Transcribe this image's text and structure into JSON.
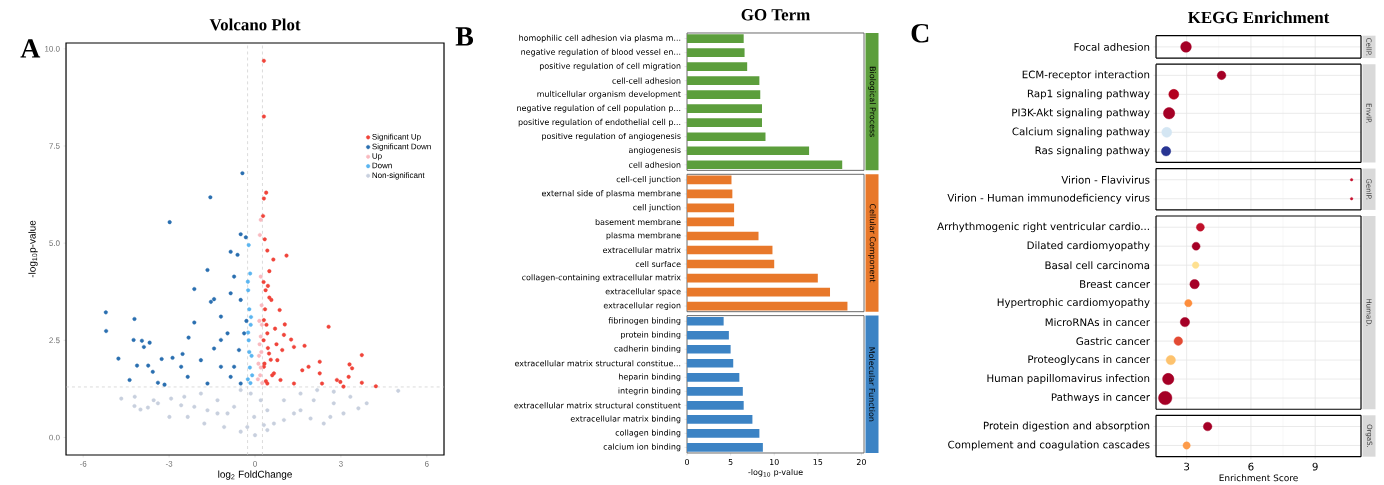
{
  "chart_data": [
    {
      "type": "scatter",
      "title": "Volcano Plot",
      "xlabel": "log$_{2}$ FoldChange",
      "ylabel": "-log$_{10}$p-value",
      "annotations": [
        "A"
      ],
      "legend": "top right",
      "xlim": [
        -6.6,
        6.6
      ],
      "ylim": [
        -0.45,
        10.15
      ],
      "xticks": [
        -6,
        -3,
        0,
        3,
        6
      ],
      "yticks": [
        {
          "value": 0,
          "label": "0.0"
        },
        {
          "value": 2.5,
          "label": "2.5"
        },
        {
          "value": 5,
          "label": "5.0"
        },
        {
          "value": 7.5,
          "label": "7.5"
        },
        {
          "value": 10,
          "label": "10.0"
        }
      ],
      "ref_lines": [
        {
          "axis": "x",
          "value": -0.26,
          "color": "#c4c4c4",
          "line_style": "dashed"
        },
        {
          "axis": "x",
          "value": 0.26,
          "color": "#c4c4c4",
          "line_style": "dashed"
        },
        {
          "axis": "y",
          "value": 1.3,
          "color": "#c4c4c4",
          "line_style": "dashed"
        }
      ],
      "series": [
        {
          "name": "Significant Up",
          "color": "#f0443a",
          "x": [
            0.31,
            0.31,
            0.39,
            0.31,
            0.28,
            0.34,
            0.43,
            0.64,
            1.1,
            0.5,
            0.37,
            0.57,
            0.86,
            1.04,
            2.57,
            1.01,
            1.26,
            1.73,
            1.36,
            0.95,
            3.73,
            2.26,
            3.3,
            1.87,
            3.39,
            1.65,
            2.26,
            3.27,
            2.86,
            2.98,
            3.73,
            2.34,
            4.22,
            3.09,
            1.36,
            0.43,
            0.31,
            0.66,
            0.89,
            0.43,
            0.31,
            0.49,
            0.78,
            0.35,
            0.4,
            0.3,
            0.45,
            0.55,
            0.33,
            0.6,
            0.38,
            0.5,
            0.3,
            0.45,
            0.7,
            0.75
          ],
          "values": [
            9.69,
            8.26,
            6.3,
            6.15,
            5.7,
            5.1,
            4.81,
            4.58,
            4.68,
            4.28,
            3.79,
            3.54,
            3.28,
            2.91,
            2.85,
            2.64,
            2.52,
            2.36,
            2.33,
            2.25,
            2.12,
            1.95,
            1.88,
            1.82,
            1.78,
            1.73,
            1.65,
            1.56,
            1.48,
            1.43,
            1.41,
            1.39,
            1.32,
            1.31,
            1.39,
            2.68,
            1.82,
            1.65,
            1.48,
            1.39,
            3.02,
            2.16,
            1.99,
            3.3,
            2.9,
            2.5,
            2.3,
            2.0,
            1.9,
            1.6,
            1.45,
            3.6,
            4.0,
            3.9,
            2.8,
            2.4
          ]
        },
        {
          "name": "Significant Down",
          "color": "#2a6fb0",
          "x": [
            -0.44,
            -1.56,
            -2.98,
            -5.21,
            -4.21,
            -5.2,
            -2.12,
            -1.66,
            -0.5,
            -0.32,
            -0.85,
            -0.61,
            -2.12,
            -2.32,
            -4.24,
            -3.95,
            -3.68,
            -3.88,
            -2.53,
            -4.77,
            -2.88,
            -3.26,
            -4.12,
            -3.73,
            -3.57,
            -4.38,
            -3.39,
            -3.16,
            -1.89,
            -1.43,
            -1.19,
            -1.54,
            -1.43,
            -0.73,
            -0.85,
            -1.19,
            -2.58,
            -2.35,
            -1.66,
            -0.96,
            -0.73,
            -0.5,
            -0.56,
            -0.85,
            -1.19,
            -0.5,
            -0.3,
            -0.38
          ],
          "values": [
            6.8,
            6.18,
            5.54,
            3.22,
            3.05,
            2.74,
            3.82,
            4.31,
            5.23,
            5.15,
            4.78,
            4.7,
            2.96,
            2.57,
            2.51,
            2.49,
            2.44,
            2.33,
            2.15,
            2.03,
            2.05,
            2.02,
            1.85,
            1.85,
            1.69,
            1.48,
            1.41,
            1.36,
            1.99,
            2.29,
            2.51,
            3.49,
            3.56,
            4.14,
            3.71,
            3.11,
            1.82,
            1.56,
            1.39,
            2.68,
            1.82,
            3.54,
            2.25,
            1.56,
            1.82,
            1.39,
            3.0,
            2.68
          ]
        },
        {
          "name": "Up",
          "color": "#f9b9bf",
          "x": [
            0.2,
            0.17,
            0.2,
            0.15,
            0.2,
            0.22,
            0.12,
            0.18,
            0.25,
            0.23,
            0.1,
            0.16,
            0.2,
            0.24,
            0.14
          ],
          "values": [
            5.6,
            5.21,
            4.14,
            3.0,
            2.6,
            2.2,
            1.9,
            1.6,
            1.4,
            3.4,
            1.5,
            2.4,
            1.8,
            2.9,
            2.1
          ]
        },
        {
          "name": "Down",
          "color": "#5bb5f0",
          "x": [
            -0.22,
            -0.17,
            -0.25,
            -0.24,
            -0.2,
            -0.15,
            -0.22,
            -0.12,
            -0.18,
            -0.25,
            -0.1,
            -0.2,
            -0.14,
            -0.24,
            -0.16
          ],
          "values": [
            4.95,
            4.22,
            4.01,
            3.79,
            3.3,
            2.9,
            2.5,
            2.1,
            1.8,
            1.5,
            1.6,
            2.2,
            3.1,
            2.7,
            1.4
          ]
        },
        {
          "name": "Non-significant",
          "color": "#c8d0de",
          "x": [
            -4.67,
            -4.2,
            -4.21,
            -4.0,
            -3.74,
            -3.54,
            -3.39,
            -2.99,
            -2.93,
            5.0,
            3.9,
            3.61,
            3.09,
            2.4,
            2.75,
            2.05,
            1.59,
            1.01,
            0.43,
            0,
            -0.5,
            -1.08,
            -1.77,
            -2.35,
            -2.47,
            -1.89,
            -1.31,
            -0.73,
            -0.03,
            0.43,
            1.01,
            1.59,
            2.17,
            3.33,
            -0.15,
            0.2,
            -0.5,
            -0.96,
            0.66,
            -1.31,
            -2.12,
            1.36,
            1.94,
            2.63,
            2.75,
            -2.58,
            -1.66,
            -0.27,
            0.31
          ],
          "values": [
            1.0,
            1.05,
            0.81,
            0.72,
            0.77,
            0.96,
            0.88,
            0.53,
            1.0,
            1.2,
            0.88,
            0.75,
            0.62,
            0.36,
            1.18,
            0.96,
            0.7,
            0.45,
            0.19,
            0.06,
            0.15,
            0.27,
            0.36,
            0.53,
            1.05,
            1.13,
            0.96,
            0.79,
            0.53,
            0.7,
            0.96,
            1.13,
            1.22,
            1.05,
            1.13,
            0.96,
            1.22,
            0.62,
            0.36,
            0.62,
            0.79,
            0.62,
            0.49,
            0.53,
            0.88,
            0.83,
            0.7,
            0.27,
            0.32
          ]
        }
      ]
    },
    {
      "type": "bar",
      "orientation": "horizontal",
      "title": "GO Term",
      "annotations": [
        "B",
        "Biological Process",
        "Cellular Component",
        "Molecular Function"
      ],
      "xlabel": "-log$_{10}$ p-value",
      "xlim": [
        0,
        20.3
      ],
      "xticks": [
        0,
        5,
        10,
        15,
        20
      ],
      "categories": [
        "homophilic cell adhesion via plasma m...",
        "negative regulation of blood vessel en...",
        "positive regulation of cell migration",
        "cell-cell adhesion",
        "multicellular organism development",
        "negative regulation of cell population p...",
        "positive regulation of endothelial cell p...",
        "positive regulation of angiogenesis",
        "angiogenesis",
        "cell adhesion",
        "cell-cell junction",
        "external side of plasma membrane",
        "cell junction",
        "basement membrane",
        "plasma membrane",
        "extracellular matrix",
        "cell surface",
        "collagen-containing extracellular matrix",
        "extracellular space",
        "extracellular region",
        "fibrinogen binding",
        "protein binding",
        "cadherin binding",
        "extracellular matrix structural constitue...",
        "heparin binding",
        "integrin binding",
        "extracellular matrix structural constituent",
        "extracellular matrix binding",
        "collagen binding",
        "calcium ion binding"
      ],
      "values": [
        6.5,
        6.6,
        6.9,
        8.3,
        8.4,
        8.6,
        8.6,
        9.0,
        14.0,
        17.8,
        5.1,
        5.2,
        5.4,
        5.4,
        8.2,
        9.8,
        10.0,
        15.0,
        16.4,
        18.4,
        4.2,
        4.8,
        5.0,
        5.3,
        6.0,
        6.4,
        6.5,
        7.5,
        8.3,
        8.7
      ],
      "colors": [
        "#5c9e3c",
        "#5c9e3c",
        "#5c9e3c",
        "#5c9e3c",
        "#5c9e3c",
        "#5c9e3c",
        "#5c9e3c",
        "#5c9e3c",
        "#5c9e3c",
        "#5c9e3c",
        "#e8782a",
        "#e8782a",
        "#e8782a",
        "#e8782a",
        "#e8782a",
        "#e8782a",
        "#e8782a",
        "#e8782a",
        "#e8782a",
        "#e8782a",
        "#3c83c4",
        "#3c83c4",
        "#3c83c4",
        "#3c83c4",
        "#3c83c4",
        "#3c83c4",
        "#3c83c4",
        "#3c83c4",
        "#3c83c4",
        "#3c83c4"
      ]
    },
    {
      "type": "bubble",
      "orientation": "horizontal",
      "title": "KEGG Enrichment",
      "annotations": [
        "C",
        "CellP.",
        "EnvIP.",
        "GenIP.",
        "HumaD.",
        "OrgaS."
      ],
      "xlabel": "Enrichment Score",
      "grid": true,
      "xlim": [
        1.57,
        11.14
      ],
      "xticks": [
        3,
        6,
        9
      ],
      "categories": [
        "Focal adhesion",
        "ECM-receptor interaction",
        "Rap1 signaling pathway",
        "PI3K-Akt signaling pathway",
        "Calcium signaling pathway",
        "Ras signaling pathway",
        "Virion - Flavivirus",
        "Virion - Human immunodeficiency virus",
        "Arrhythmogenic right ventricular cardio...",
        "Dilated cardiomyopathy",
        "Basal cell carcinoma",
        "Breast cancer",
        "Hypertrophic cardiomyopathy",
        "MicroRNAs in cancer",
        "Gastric cancer",
        "Proteoglycans in cancer",
        "Human papillomavirus infection",
        "Pathways in cancer",
        "Protein digestion and absorption",
        "Complement and coagulation cascades"
      ],
      "values": [
        2.97,
        4.63,
        2.4,
        2.18,
        2.07,
        2.04,
        10.7,
        10.7,
        3.64,
        3.44,
        3.42,
        3.37,
        3.08,
        2.92,
        2.61,
        2.26,
        2.14,
        2.0,
        3.98,
        3.0
      ],
      "sizes": [
        0.64,
        0.42,
        0.56,
        0.72,
        0.56,
        0.49,
        0.04,
        0.04,
        0.36,
        0.36,
        0.25,
        0.49,
        0.3,
        0.49,
        0.42,
        0.49,
        0.72,
        1,
        0.42,
        0.3
      ],
      "colors": [
        "#a50026",
        "#a50026",
        "#b3001e",
        "#a50026",
        "#d4e6f3",
        "#283593",
        "#c8102e",
        "#c8102e",
        "#c0102a",
        "#a50026",
        "#fee090",
        "#a50026",
        "#fd8d3c",
        "#a50026",
        "#e34a33",
        "#fdc26d",
        "#a50026",
        "#a50026",
        "#a50026",
        "#fd9b4a"
      ]
    }
  ]
}
